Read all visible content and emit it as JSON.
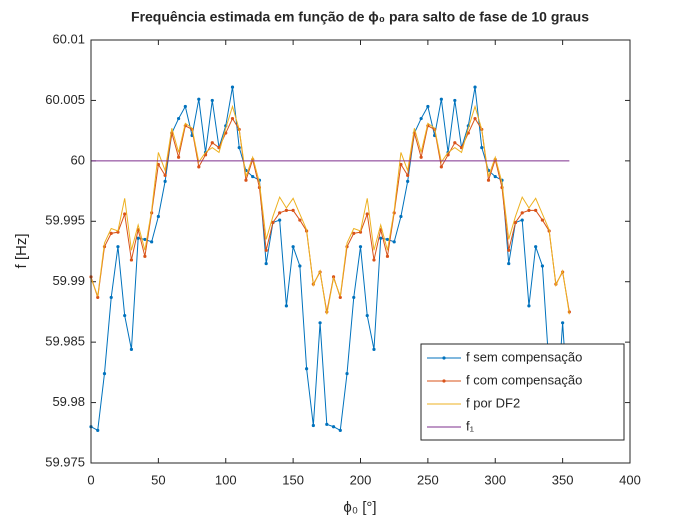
{
  "chart_data": {
    "type": "line",
    "title": "Frequência estimada em função de ϕ₀ para salto de fase de 10 graus",
    "xlabel": "ϕ₀ [°]",
    "ylabel": "f [Hz]",
    "x": [
      0,
      5,
      10,
      15,
      20,
      25,
      30,
      35,
      40,
      45,
      50,
      55,
      60,
      65,
      70,
      75,
      80,
      85,
      90,
      95,
      100,
      105,
      110,
      115,
      120,
      125,
      130,
      135,
      140,
      145,
      150,
      155,
      160,
      165,
      170,
      175,
      180,
      185,
      190,
      195,
      200,
      205,
      210,
      215,
      220,
      225,
      230,
      235,
      240,
      245,
      250,
      255,
      260,
      265,
      270,
      275,
      280,
      285,
      290,
      295,
      300,
      305,
      310,
      315,
      320,
      325,
      330,
      335,
      340,
      345,
      350,
      355
    ],
    "series": [
      {
        "name": "f sem compensação",
        "color": "#0072BD",
        "marker": true,
        "values": [
          59.978,
          59.9777,
          59.9824,
          59.9887,
          59.9929,
          59.9872,
          59.9844,
          59.9936,
          59.9935,
          59.9933,
          59.9954,
          59.9983,
          60.0023,
          60.0035,
          60.0045,
          60.0021,
          60.0051,
          60.0007,
          60.005,
          60.0011,
          60.0029,
          60.0061,
          60.0011,
          59.9992,
          59.9987,
          59.9984,
          59.9915,
          59.9949,
          59.9951,
          59.988,
          59.9929,
          59.9913,
          59.9828,
          59.9781,
          59.9866,
          59.9782,
          59.978,
          59.9777,
          59.9824,
          59.9887,
          59.9929,
          59.9872,
          59.9844,
          59.9936,
          59.9935,
          59.9933,
          59.9954,
          59.9983,
          60.0023,
          60.0035,
          60.0045,
          60.0021,
          60.0051,
          60.0007,
          60.005,
          60.0011,
          60.0029,
          60.0061,
          60.0011,
          59.9992,
          59.9987,
          59.9984,
          59.9915,
          59.9949,
          59.9951,
          59.988,
          59.9929,
          59.9913,
          59.9828,
          59.9781,
          59.9866,
          59.9782
        ]
      },
      {
        "name": "f com compensação",
        "color": "#D95319",
        "marker": true,
        "values": [
          59.9904,
          59.9887,
          59.9929,
          59.994,
          59.9941,
          59.9956,
          59.9918,
          59.9943,
          59.9921,
          59.9957,
          59.9997,
          59.9988,
          60.0023,
          60.0003,
          60.0029,
          60.0026,
          59.9995,
          60.0005,
          60.0015,
          60.0011,
          60.0023,
          60.0035,
          60.0026,
          59.9984,
          60.0001,
          59.9978,
          59.9926,
          59.9949,
          59.9957,
          59.9959,
          59.9959,
          59.9951,
          59.9942,
          59.9898,
          59.9908,
          59.9875,
          59.9904,
          59.9887,
          59.9929,
          59.994,
          59.9941,
          59.9956,
          59.9918,
          59.9943,
          59.9921,
          59.9957,
          59.9997,
          59.9988,
          60.0023,
          60.0003,
          60.0029,
          60.0026,
          59.9995,
          60.0005,
          60.0015,
          60.0011,
          60.0023,
          60.0035,
          60.0026,
          59.9984,
          60.0001,
          59.9978,
          59.9926,
          59.9949,
          59.9957,
          59.9959,
          59.9959,
          59.9951,
          59.9942,
          59.9898,
          59.9908,
          59.9875
        ]
      },
      {
        "name": "f por DF2",
        "color": "#EDB120",
        "marker": false,
        "values": [
          59.9903,
          59.9888,
          59.9932,
          59.9944,
          59.9942,
          59.9969,
          59.9926,
          59.9947,
          59.9926,
          59.9959,
          60.0007,
          59.9992,
          60.0027,
          60.0007,
          60.0031,
          60.0027,
          59.9999,
          60.0007,
          60.0011,
          60.0007,
          60.0027,
          60.0045,
          60.0026,
          59.9987,
          60.0003,
          59.9982,
          59.9935,
          59.9954,
          59.997,
          59.9961,
          59.9969,
          59.9956,
          59.9943,
          59.9897,
          59.9909,
          59.9873,
          59.9903,
          59.9888,
          59.9932,
          59.9944,
          59.9942,
          59.9969,
          59.9926,
          59.9947,
          59.9926,
          59.9959,
          60.0007,
          59.9992,
          60.0027,
          60.0007,
          60.0031,
          60.0027,
          59.9999,
          60.0007,
          60.0011,
          60.0007,
          60.0027,
          60.0045,
          60.0026,
          59.9987,
          60.0003,
          59.9982,
          59.9935,
          59.9954,
          59.997,
          59.9961,
          59.9969,
          59.9956,
          59.9943,
          59.9897,
          59.9909,
          59.9873
        ]
      },
      {
        "name": "f₁",
        "color": "#7E2F8E",
        "marker": false,
        "values": [
          60,
          60,
          60,
          60,
          60,
          60,
          60,
          60,
          60,
          60,
          60,
          60,
          60,
          60,
          60,
          60,
          60,
          60,
          60,
          60,
          60,
          60,
          60,
          60,
          60,
          60,
          60,
          60,
          60,
          60,
          60,
          60,
          60,
          60,
          60,
          60,
          60,
          60,
          60,
          60,
          60,
          60,
          60,
          60,
          60,
          60,
          60,
          60,
          60,
          60,
          60,
          60,
          60,
          60,
          60,
          60,
          60,
          60,
          60,
          60,
          60,
          60,
          60,
          60,
          60,
          60,
          60,
          60,
          60,
          60,
          60,
          60
        ]
      }
    ],
    "xlim": [
      0,
      400
    ],
    "xticks": [
      0,
      50,
      100,
      150,
      200,
      250,
      300,
      350,
      400
    ],
    "ylim": [
      59.975,
      60.01
    ],
    "yticks": [
      59.975,
      59.98,
      59.985,
      59.99,
      59.995,
      60,
      60.005,
      60.01
    ],
    "legend": "lower right"
  }
}
